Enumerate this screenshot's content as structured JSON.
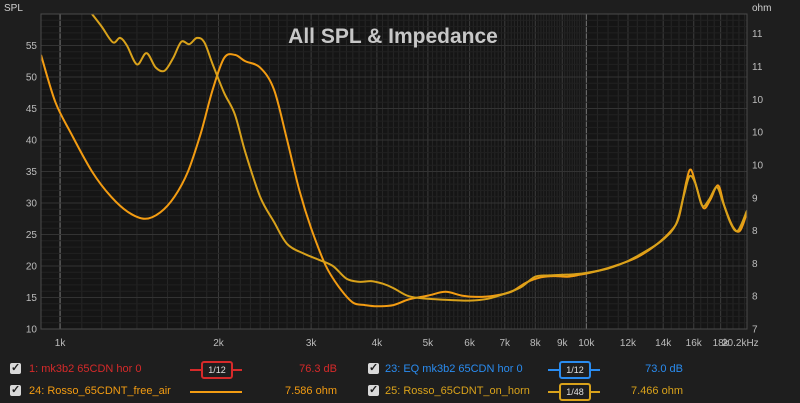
{
  "chart_data": {
    "type": "line",
    "title": "All SPL & Impedance",
    "ylabel": "SPL",
    "y2label": "ohm",
    "xlim": [
      920,
      20200
    ],
    "ylim": [
      10,
      60
    ],
    "y2lim": [
      7,
      11.8
    ],
    "x_ticks": [
      {
        "v": 1000,
        "label": "1k"
      },
      {
        "v": 2000,
        "label": "2k"
      },
      {
        "v": 3000,
        "label": "3k"
      },
      {
        "v": 4000,
        "label": "4k"
      },
      {
        "v": 5000,
        "label": "5k"
      },
      {
        "v": 6000,
        "label": "6k"
      },
      {
        "v": 7000,
        "label": "7k"
      },
      {
        "v": 8000,
        "label": "8k"
      },
      {
        "v": 9000,
        "label": "9k"
      },
      {
        "v": 10000,
        "label": "10k"
      },
      {
        "v": 12000,
        "label": "12k"
      },
      {
        "v": 14000,
        "label": "14k"
      },
      {
        "v": 16000,
        "label": "16k"
      },
      {
        "v": 18000,
        "label": "18k"
      },
      {
        "v": 20200,
        "label": "20.2kHz"
      }
    ],
    "y_ticks": [
      10,
      15,
      20,
      25,
      30,
      35,
      40,
      45,
      50,
      55
    ],
    "y2_ticks": [
      {
        "v": 7,
        "label": "7"
      },
      {
        "v": 7.5,
        "label": "8"
      },
      {
        "v": 8,
        "label": "8"
      },
      {
        "v": 8.5,
        "label": "8"
      },
      {
        "v": 9,
        "label": "9"
      },
      {
        "v": 9.5,
        "label": "10"
      },
      {
        "v": 10,
        "label": "10"
      },
      {
        "v": 10.5,
        "label": "10"
      },
      {
        "v": 11,
        "label": "11"
      },
      {
        "v": 11.5,
        "label": "11"
      }
    ],
    "series": [
      {
        "name": "24: Rosso_65CDNT_free_air",
        "axis": "left",
        "color": "#f39c12",
        "points": [
          [
            920,
            53.5
          ],
          [
            980,
            46
          ],
          [
            1050,
            41
          ],
          [
            1150,
            35
          ],
          [
            1250,
            31
          ],
          [
            1350,
            28.5
          ],
          [
            1450,
            27.5
          ],
          [
            1550,
            28.5
          ],
          [
            1650,
            31
          ],
          [
            1750,
            35
          ],
          [
            1850,
            41
          ],
          [
            1950,
            48
          ],
          [
            2050,
            53
          ],
          [
            2150,
            53.5
          ],
          [
            2250,
            52.5
          ],
          [
            2400,
            51.5
          ],
          [
            2550,
            48
          ],
          [
            2700,
            40
          ],
          [
            2850,
            32
          ],
          [
            3000,
            26
          ],
          [
            3200,
            20
          ],
          [
            3400,
            16.5
          ],
          [
            3600,
            14.2
          ],
          [
            3800,
            13.8
          ],
          [
            4000,
            13.6
          ],
          [
            4300,
            13.8
          ],
          [
            4600,
            14.7
          ],
          [
            5000,
            15.3
          ],
          [
            5400,
            15.9
          ],
          [
            5800,
            15.3
          ],
          [
            6200,
            15.1
          ],
          [
            6700,
            15.3
          ],
          [
            7200,
            15.9
          ],
          [
            7700,
            17.4
          ],
          [
            8200,
            18.2
          ],
          [
            8700,
            18.4
          ],
          [
            9200,
            18.3
          ],
          [
            9700,
            18.6
          ],
          [
            10500,
            19.2
          ],
          [
            11500,
            20.2
          ],
          [
            12500,
            21.4
          ],
          [
            13500,
            23.2
          ],
          [
            14500,
            25.6
          ],
          [
            15000,
            27.8
          ],
          [
            15500,
            33.5
          ],
          [
            15800,
            35.3
          ],
          [
            16200,
            32.5
          ],
          [
            16700,
            29.2
          ],
          [
            17200,
            30.5
          ],
          [
            17800,
            32.8
          ],
          [
            18300,
            29.5
          ],
          [
            19000,
            26.2
          ],
          [
            19600,
            25.6
          ],
          [
            20200,
            28.5
          ]
        ]
      },
      {
        "name": "25: Rosso_65CDNT_on_horn",
        "axis": "left",
        "color": "#d9a21b",
        "points": [
          [
            1150,
            60
          ],
          [
            1200,
            58
          ],
          [
            1260,
            55.5
          ],
          [
            1300,
            56.2
          ],
          [
            1340,
            55
          ],
          [
            1400,
            52
          ],
          [
            1460,
            53.8
          ],
          [
            1520,
            51.5
          ],
          [
            1580,
            51
          ],
          [
            1640,
            53
          ],
          [
            1700,
            55.6
          ],
          [
            1760,
            55.2
          ],
          [
            1820,
            56.2
          ],
          [
            1880,
            55.5
          ],
          [
            1950,
            52
          ],
          [
            2050,
            47.5
          ],
          [
            2150,
            44
          ],
          [
            2250,
            38
          ],
          [
            2400,
            31
          ],
          [
            2550,
            27
          ],
          [
            2700,
            23.5
          ],
          [
            2900,
            22
          ],
          [
            3100,
            21
          ],
          [
            3300,
            20
          ],
          [
            3500,
            18
          ],
          [
            3700,
            17.5
          ],
          [
            3900,
            17.6
          ],
          [
            4100,
            17.2
          ],
          [
            4300,
            16.5
          ],
          [
            4600,
            15.2
          ],
          [
            5000,
            14.8
          ],
          [
            5500,
            14.6
          ],
          [
            6000,
            14.5
          ],
          [
            6500,
            14.8
          ],
          [
            7000,
            15.6
          ],
          [
            7500,
            16.6
          ],
          [
            8000,
            18.3
          ],
          [
            8500,
            18.5
          ],
          [
            9000,
            18.6
          ],
          [
            9500,
            18.7
          ],
          [
            10000,
            18.9
          ],
          [
            11000,
            19.6
          ],
          [
            12000,
            20.8
          ],
          [
            13000,
            22.4
          ],
          [
            14000,
            24.2
          ],
          [
            14800,
            26.6
          ],
          [
            15300,
            31
          ],
          [
            15700,
            34.2
          ],
          [
            16100,
            33.2
          ],
          [
            16600,
            29.6
          ],
          [
            17100,
            30.5
          ],
          [
            17700,
            32.5
          ],
          [
            18200,
            30
          ],
          [
            18800,
            26.8
          ],
          [
            19400,
            25.6
          ],
          [
            20200,
            28.8
          ]
        ]
      }
    ]
  },
  "legend": [
    {
      "name": "1: mk3b2 65CDN hor 0",
      "value": "76.3 dB",
      "smoothing": "1/12",
      "color": "#d62a2a"
    },
    {
      "name": "23: EQ mk3b2 65CDN hor 0",
      "value": "73.0 dB",
      "smoothing": "1/12",
      "color": "#2a8cf0"
    },
    {
      "name": "24: Rosso_65CDNT_free_air",
      "value": "7.586 ohm",
      "smoothing": "",
      "color": "#f39c12"
    },
    {
      "name": "25: Rosso_65CDNT_on_horn",
      "value": "7.466 ohm",
      "smoothing": "1/48",
      "color": "#d9a21b"
    }
  ]
}
